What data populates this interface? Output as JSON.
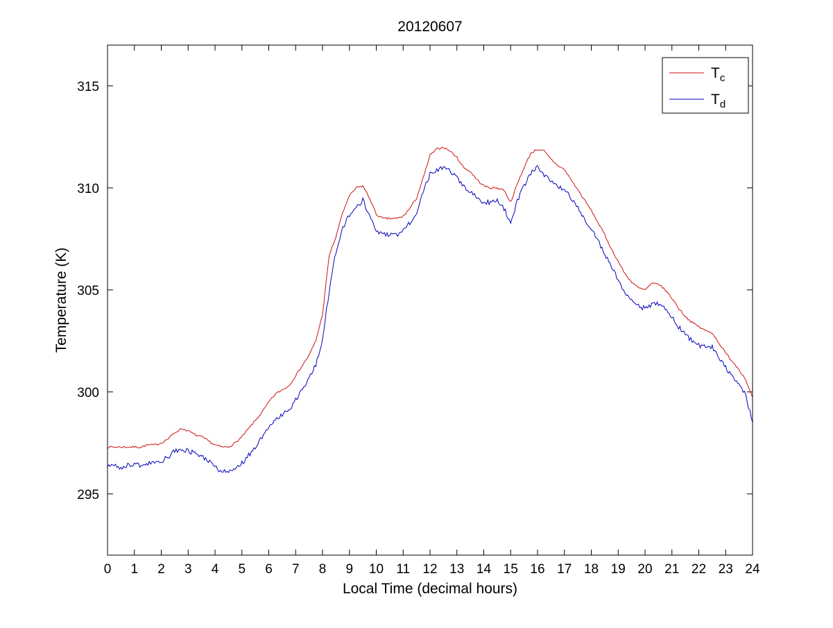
{
  "figure": {
    "background": "#ffffff"
  },
  "chart_data": {
    "type": "line",
    "title": "20120607",
    "xlabel": "Local Time (decimal hours)",
    "ylabel": "Temperature (K)",
    "xlim": [
      0,
      24
    ],
    "ylim": [
      292,
      317
    ],
    "xticks": [
      0,
      1,
      2,
      3,
      4,
      5,
      6,
      7,
      8,
      9,
      10,
      11,
      12,
      13,
      14,
      15,
      16,
      17,
      18,
      19,
      20,
      21,
      22,
      23,
      24
    ],
    "yticks": [
      295,
      300,
      305,
      310,
      315
    ],
    "grid": false,
    "legend_position": "top-right",
    "x_start": 0,
    "x_step": 0.25,
    "series": [
      {
        "name": "T_c",
        "label_main": "T",
        "label_sub": "c",
        "color": "#cc1111",
        "noise": 0.05,
        "values": [
          297.3,
          297.3,
          297.3,
          297.3,
          297.3,
          297.3,
          297.4,
          297.4,
          297.5,
          297.7,
          298.0,
          298.2,
          298.1,
          297.9,
          297.8,
          297.6,
          297.4,
          297.3,
          297.3,
          297.5,
          297.8,
          298.2,
          298.6,
          299.0,
          299.5,
          299.9,
          300.1,
          300.3,
          300.8,
          301.3,
          301.8,
          302.5,
          303.8,
          306.7,
          307.6,
          308.8,
          309.6,
          310.0,
          310.1,
          309.5,
          308.7,
          308.5,
          308.5,
          308.5,
          308.6,
          309.0,
          309.5,
          310.5,
          311.6,
          311.9,
          312.0,
          311.8,
          311.5,
          311.0,
          310.8,
          310.4,
          310.1,
          310.0,
          310.0,
          309.9,
          309.3,
          310.2,
          311.0,
          311.7,
          311.9,
          311.8,
          311.4,
          311.1,
          310.9,
          310.4,
          309.9,
          309.4,
          308.9,
          308.3,
          307.7,
          307.0,
          306.4,
          305.8,
          305.4,
          305.1,
          305.0,
          305.3,
          305.3,
          305.0,
          304.6,
          304.1,
          303.7,
          303.4,
          303.2,
          303.0,
          302.9,
          302.4,
          301.9,
          301.5,
          301.1,
          300.6,
          299.7
        ]
      },
      {
        "name": "T_d",
        "label_main": "T",
        "label_sub": "d",
        "color": "#0000bb",
        "noise": 0.12,
        "values": [
          296.4,
          296.4,
          296.3,
          296.4,
          296.5,
          296.4,
          296.5,
          296.5,
          296.6,
          296.8,
          297.1,
          297.2,
          297.1,
          297.0,
          296.9,
          296.6,
          296.3,
          296.1,
          296.1,
          296.2,
          296.5,
          296.9,
          297.3,
          297.8,
          298.3,
          298.7,
          298.9,
          299.1,
          299.6,
          300.1,
          300.7,
          301.3,
          302.6,
          305.0,
          306.9,
          308.0,
          308.7,
          309.0,
          309.4,
          308.6,
          307.9,
          307.7,
          307.7,
          307.7,
          307.9,
          308.3,
          308.8,
          309.8,
          310.7,
          310.9,
          311.0,
          310.8,
          310.5,
          310.1,
          309.8,
          309.5,
          309.3,
          309.3,
          309.4,
          309.0,
          308.3,
          309.4,
          310.1,
          310.7,
          311.0,
          310.6,
          310.3,
          310.1,
          309.9,
          309.5,
          309.0,
          308.5,
          308.0,
          307.4,
          306.8,
          306.1,
          305.5,
          304.9,
          304.5,
          304.2,
          304.1,
          304.3,
          304.3,
          304.1,
          303.7,
          303.2,
          302.8,
          302.5,
          302.3,
          302.2,
          302.2,
          301.7,
          301.2,
          300.8,
          300.4,
          299.8,
          298.5
        ]
      }
    ]
  }
}
